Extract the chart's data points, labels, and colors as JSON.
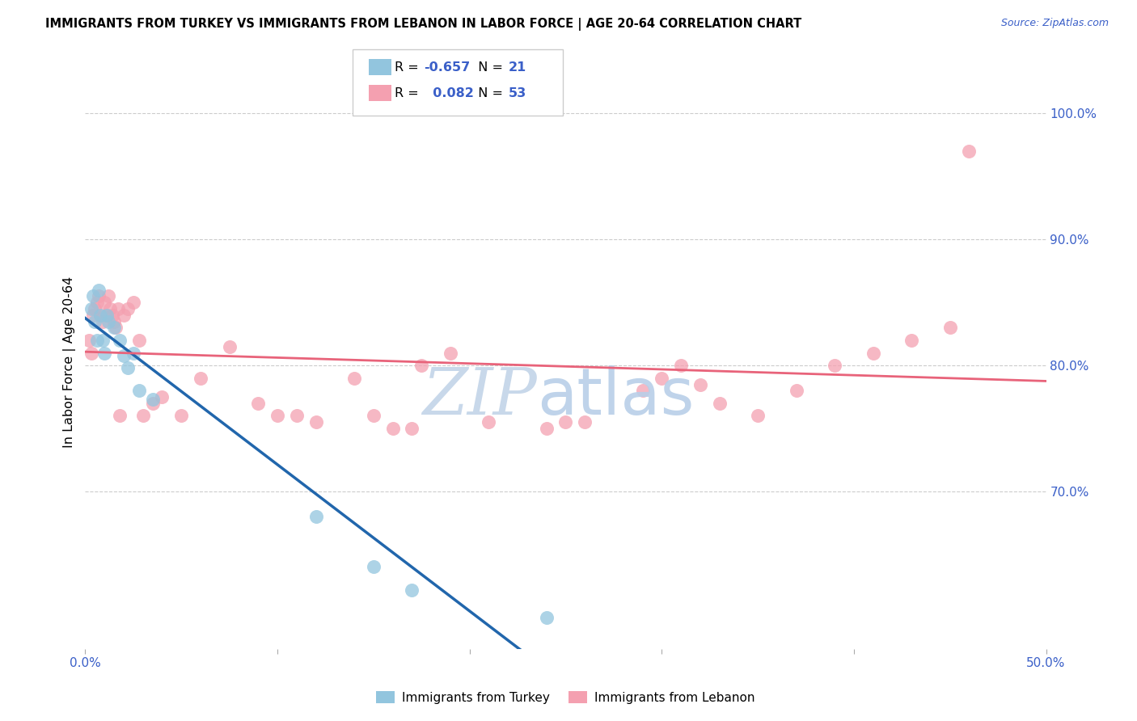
{
  "title": "IMMIGRANTS FROM TURKEY VS IMMIGRANTS FROM LEBANON IN LABOR FORCE | AGE 20-64 CORRELATION CHART",
  "source": "Source: ZipAtlas.com",
  "ylabel": "In Labor Force | Age 20-64",
  "xlim": [
    0.0,
    0.5
  ],
  "ylim": [
    0.575,
    1.03
  ],
  "xticks": [
    0.0,
    0.1,
    0.2,
    0.3,
    0.4,
    0.5
  ],
  "xticklabels": [
    "0.0%",
    "",
    "",
    "",
    "",
    "50.0%"
  ],
  "yticks_right": [
    0.7,
    0.8,
    0.9,
    1.0
  ],
  "ytick_labels_right": [
    "70.0%",
    "80.0%",
    "90.0%",
    "100.0%"
  ],
  "turkey_color": "#92c5de",
  "lebanon_color": "#f4a0b0",
  "turkey_line_color": "#2166ac",
  "lebanon_line_color": "#e8637a",
  "turkey_R": -0.657,
  "turkey_N": 21,
  "lebanon_R": 0.082,
  "lebanon_N": 53,
  "watermark_zip_color": "#c8d8ea",
  "watermark_atlas_color": "#b8cfe8",
  "turkey_scatter_x": [
    0.003,
    0.004,
    0.005,
    0.006,
    0.007,
    0.008,
    0.009,
    0.01,
    0.011,
    0.012,
    0.015,
    0.018,
    0.02,
    0.022,
    0.025,
    0.028,
    0.035,
    0.12,
    0.15,
    0.17,
    0.24
  ],
  "turkey_scatter_y": [
    0.845,
    0.855,
    0.835,
    0.82,
    0.86,
    0.84,
    0.82,
    0.81,
    0.84,
    0.835,
    0.83,
    0.82,
    0.808,
    0.798,
    0.81,
    0.78,
    0.773,
    0.68,
    0.64,
    0.622,
    0.6
  ],
  "lebanon_scatter_x": [
    0.002,
    0.003,
    0.004,
    0.005,
    0.006,
    0.007,
    0.008,
    0.009,
    0.01,
    0.011,
    0.012,
    0.013,
    0.014,
    0.015,
    0.016,
    0.017,
    0.018,
    0.02,
    0.022,
    0.025,
    0.028,
    0.03,
    0.035,
    0.04,
    0.05,
    0.06,
    0.075,
    0.09,
    0.1,
    0.11,
    0.12,
    0.14,
    0.15,
    0.16,
    0.17,
    0.175,
    0.19,
    0.21,
    0.24,
    0.25,
    0.26,
    0.29,
    0.3,
    0.31,
    0.32,
    0.33,
    0.35,
    0.37,
    0.39,
    0.41,
    0.43,
    0.45,
    0.46
  ],
  "lebanon_scatter_y": [
    0.82,
    0.81,
    0.84,
    0.845,
    0.85,
    0.855,
    0.84,
    0.835,
    0.85,
    0.84,
    0.855,
    0.845,
    0.84,
    0.835,
    0.83,
    0.845,
    0.76,
    0.84,
    0.845,
    0.85,
    0.82,
    0.76,
    0.77,
    0.775,
    0.76,
    0.79,
    0.815,
    0.77,
    0.76,
    0.76,
    0.755,
    0.79,
    0.76,
    0.75,
    0.75,
    0.8,
    0.81,
    0.755,
    0.75,
    0.755,
    0.755,
    0.78,
    0.79,
    0.8,
    0.785,
    0.77,
    0.76,
    0.78,
    0.8,
    0.81,
    0.82,
    0.83,
    0.97
  ]
}
